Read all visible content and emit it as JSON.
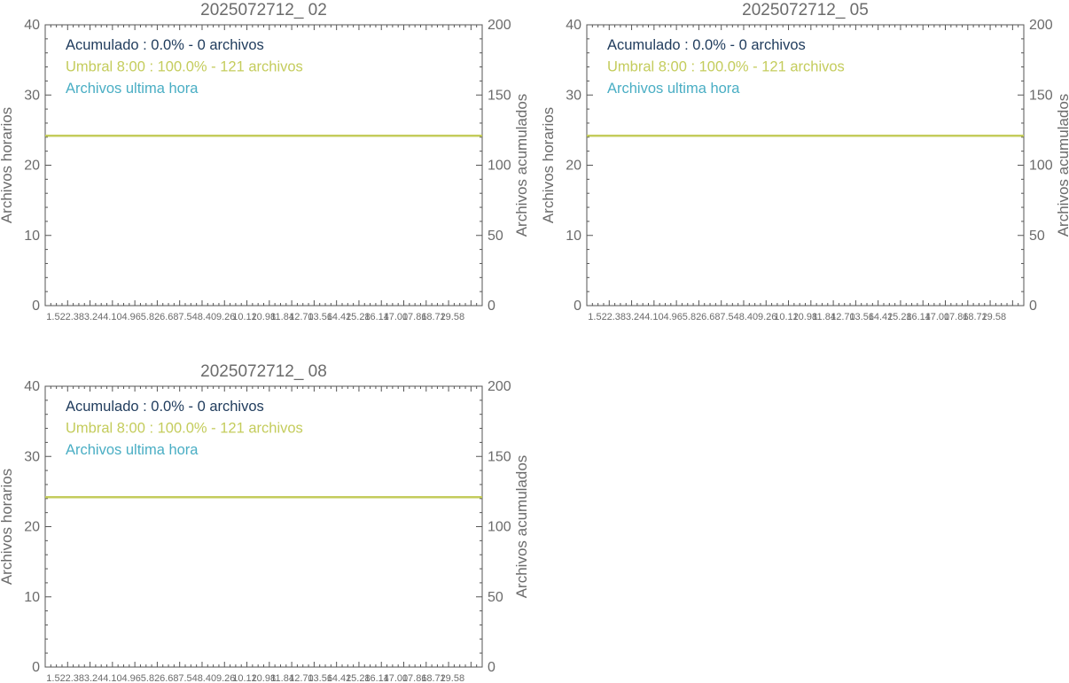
{
  "colors": {
    "frame": "#555555",
    "text": "#6b6b6b",
    "accum": "#1f3b5c",
    "threshold": "#c4cc5c",
    "hourly": "#4aaec4"
  },
  "chart_data": [
    {
      "type": "line",
      "title": "2025072712_ 02",
      "ylabel": "Archivos horarios",
      "y2label": "Archivos acumulados",
      "ylim": [
        0,
        40
      ],
      "y2lim": [
        0,
        200
      ],
      "yticks": [
        0,
        10,
        20,
        30,
        40
      ],
      "y2ticks": [
        0,
        50,
        100,
        150,
        200
      ],
      "xtick_labels": [
        "1.52",
        "2.38",
        "3.24",
        "4.10",
        "4.96",
        "5.82",
        "6.68",
        "7.54",
        "8.40",
        "9.26",
        "10.12",
        "10.98",
        "11.84",
        "12.70",
        "13.56",
        "14.42",
        "15.28",
        "16.14",
        "17.00",
        "17.86",
        "18.72",
        "19.58"
      ],
      "legend": [
        {
          "text": "Acumulado : 0.0% - 0 archivos",
          "color_key": "accum"
        },
        {
          "text": "Umbral 8:00 : 100.0% - 121 archivos",
          "color_key": "threshold"
        },
        {
          "text": "Archivos ultima hora",
          "color_key": "hourly"
        }
      ],
      "legend_position": "top-left",
      "series": [
        {
          "name": "Umbral 8:00 : 100.0% - 121 archivos",
          "axis": "right",
          "values": [
            121,
            121
          ]
        }
      ]
    },
    {
      "type": "line",
      "title": "2025072712_ 05",
      "ylabel": "Archivos horarios",
      "y2label": "Archivos acumulados",
      "ylim": [
        0,
        40
      ],
      "y2lim": [
        0,
        200
      ],
      "yticks": [
        0,
        10,
        20,
        30,
        40
      ],
      "y2ticks": [
        0,
        50,
        100,
        150,
        200
      ],
      "xtick_labels": [
        "1.52",
        "2.38",
        "3.24",
        "4.10",
        "4.96",
        "5.82",
        "6.68",
        "7.54",
        "8.40",
        "9.26",
        "10.12",
        "10.98",
        "11.84",
        "12.70",
        "13.56",
        "14.42",
        "15.28",
        "16.14",
        "17.00",
        "17.86",
        "18.72",
        "19.58"
      ],
      "legend": [
        {
          "text": "Acumulado : 0.0% - 0 archivos",
          "color_key": "accum"
        },
        {
          "text": "Umbral 8:00 : 100.0% - 121 archivos",
          "color_key": "threshold"
        },
        {
          "text": "Archivos ultima hora",
          "color_key": "hourly"
        }
      ],
      "legend_position": "top-left",
      "series": [
        {
          "name": "Umbral 8:00 : 100.0% - 121 archivos",
          "axis": "right",
          "values": [
            121,
            121
          ]
        }
      ]
    },
    {
      "type": "line",
      "title": "2025072712_ 08",
      "ylabel": "Archivos horarios",
      "y2label": "Archivos acumulados",
      "ylim": [
        0,
        40
      ],
      "y2lim": [
        0,
        200
      ],
      "yticks": [
        0,
        10,
        20,
        30,
        40
      ],
      "y2ticks": [
        0,
        50,
        100,
        150,
        200
      ],
      "xtick_labels": [
        "1.52",
        "2.38",
        "3.24",
        "4.10",
        "4.96",
        "5.82",
        "6.68",
        "7.54",
        "8.40",
        "9.26",
        "10.12",
        "10.98",
        "11.84",
        "12.70",
        "13.56",
        "14.42",
        "15.28",
        "16.14",
        "17.00",
        "17.86",
        "18.72",
        "19.58"
      ],
      "legend": [
        {
          "text": "Acumulado : 0.0% - 0 archivos",
          "color_key": "accum"
        },
        {
          "text": "Umbral 8:00 : 100.0% - 121 archivos",
          "color_key": "threshold"
        },
        {
          "text": "Archivos ultima hora",
          "color_key": "hourly"
        }
      ],
      "legend_position": "top-left",
      "series": [
        {
          "name": "Umbral 8:00 : 100.0% - 121 archivos",
          "axis": "right",
          "values": [
            121,
            121
          ]
        }
      ]
    }
  ]
}
